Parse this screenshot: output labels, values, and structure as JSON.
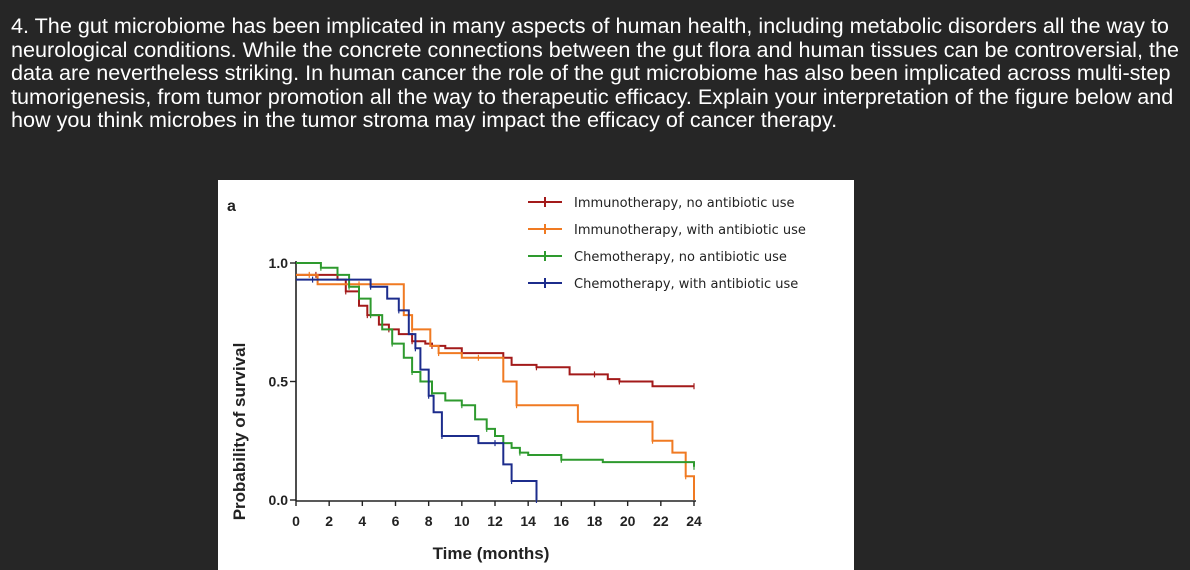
{
  "question": {
    "text": "4. The gut microbiome has been implicated in many aspects of human health, including metabolic disorders all the way to neurological conditions. While the concrete connections between the gut flora and human tissues can be controversial, the data are nevertheless striking. In human cancer the role of the gut microbiome has also been implicated across multi-step tumorigenesis, from tumor promotion all the way to therapeutic efficacy. Explain your interpretation of the figure below and how you think microbes in the tumor stroma may impact the efficacy of cancer therapy."
  },
  "chart_data": {
    "type": "line",
    "panel_label": "a",
    "xlabel": "Time (months)",
    "ylabel": "Probability of survival",
    "xlim": [
      0,
      24
    ],
    "ylim": [
      0,
      1.0
    ],
    "x_ticks": [
      "0",
      "2",
      "4",
      "6",
      "8",
      "10",
      "12",
      "14",
      "16",
      "18",
      "20",
      "22",
      "24"
    ],
    "y_ticks": [
      "0.0",
      "0.5",
      "1.0"
    ],
    "legend_position": "top-right",
    "series": [
      {
        "name": "Immunotherapy, no antibiotic use",
        "color": "#a31a1a",
        "x": [
          0,
          1.2,
          2.5,
          3.0,
          3.8,
          4.3,
          5.0,
          5.6,
          6.2,
          7.0,
          7.8,
          8.2,
          9.0,
          10.0,
          11.0,
          12.5,
          13.0,
          14.5,
          16.5,
          18.0,
          18.8,
          19.5,
          21.5,
          24
        ],
        "y": [
          0.95,
          0.95,
          0.93,
          0.88,
          0.82,
          0.78,
          0.74,
          0.72,
          0.7,
          0.67,
          0.66,
          0.65,
          0.64,
          0.62,
          0.62,
          0.6,
          0.57,
          0.56,
          0.53,
          0.53,
          0.51,
          0.5,
          0.48,
          0.48
        ]
      },
      {
        "name": "Immunotherapy, with antibiotic use",
        "color": "#f07a22",
        "x": [
          0,
          0.8,
          1.3,
          3.8,
          6.5,
          7.0,
          8.1,
          8.6,
          10.0,
          11.0,
          12.5,
          13.3,
          17.0,
          21.5,
          22.7,
          23.5,
          24
        ],
        "y": [
          0.95,
          0.95,
          0.91,
          0.91,
          0.78,
          0.72,
          0.65,
          0.62,
          0.6,
          0.6,
          0.5,
          0.4,
          0.33,
          0.25,
          0.2,
          0.1,
          0.0
        ]
      },
      {
        "name": "Chemotherapy, no antibiotic use",
        "color": "#2e9a2e",
        "x": [
          0,
          1.5,
          2.5,
          3.2,
          3.8,
          4.5,
          5.2,
          5.8,
          6.5,
          7.0,
          7.5,
          8.2,
          9.0,
          10.0,
          10.8,
          11.5,
          12.0,
          12.5,
          13.0,
          13.5,
          14.0,
          16.0,
          18.5,
          24
        ],
        "y": [
          1.0,
          0.98,
          0.95,
          0.9,
          0.85,
          0.78,
          0.72,
          0.66,
          0.6,
          0.54,
          0.5,
          0.45,
          0.42,
          0.4,
          0.34,
          0.3,
          0.27,
          0.24,
          0.22,
          0.2,
          0.19,
          0.17,
          0.16,
          0.14
        ]
      },
      {
        "name": "Chemotherapy, with antibiotic use",
        "color": "#1c2c8c",
        "x": [
          0,
          1.0,
          3.0,
          4.5,
          5.5,
          6.2,
          6.8,
          7.2,
          7.5,
          8.0,
          8.3,
          8.8,
          11.0,
          12.0,
          12.5,
          13.0,
          14.5,
          14.5
        ],
        "y": [
          0.93,
          0.93,
          0.93,
          0.9,
          0.85,
          0.8,
          0.7,
          0.64,
          0.55,
          0.44,
          0.37,
          0.27,
          0.24,
          0.24,
          0.15,
          0.08,
          0.0,
          0.0
        ]
      }
    ]
  }
}
